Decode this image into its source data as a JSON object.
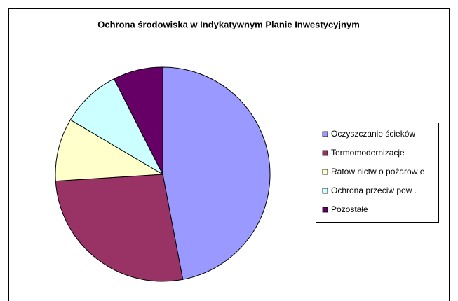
{
  "chart_data": {
    "type": "pie",
    "title": "Ochrona środowiska w Indykatywnym Planie Inwestycyjnym",
    "categories": [
      "Oczyszczanie ścieków",
      "Termomodernizacje",
      "Ratow nictw o pożarow e",
      "Ochrona przeciw pow .",
      "Pozostałe"
    ],
    "values": [
      47,
      27,
      9.5,
      9,
      7.5
    ],
    "colors": [
      "#9999ff",
      "#993366",
      "#ffffcc",
      "#ccffff",
      "#660066"
    ],
    "legend": "right"
  }
}
